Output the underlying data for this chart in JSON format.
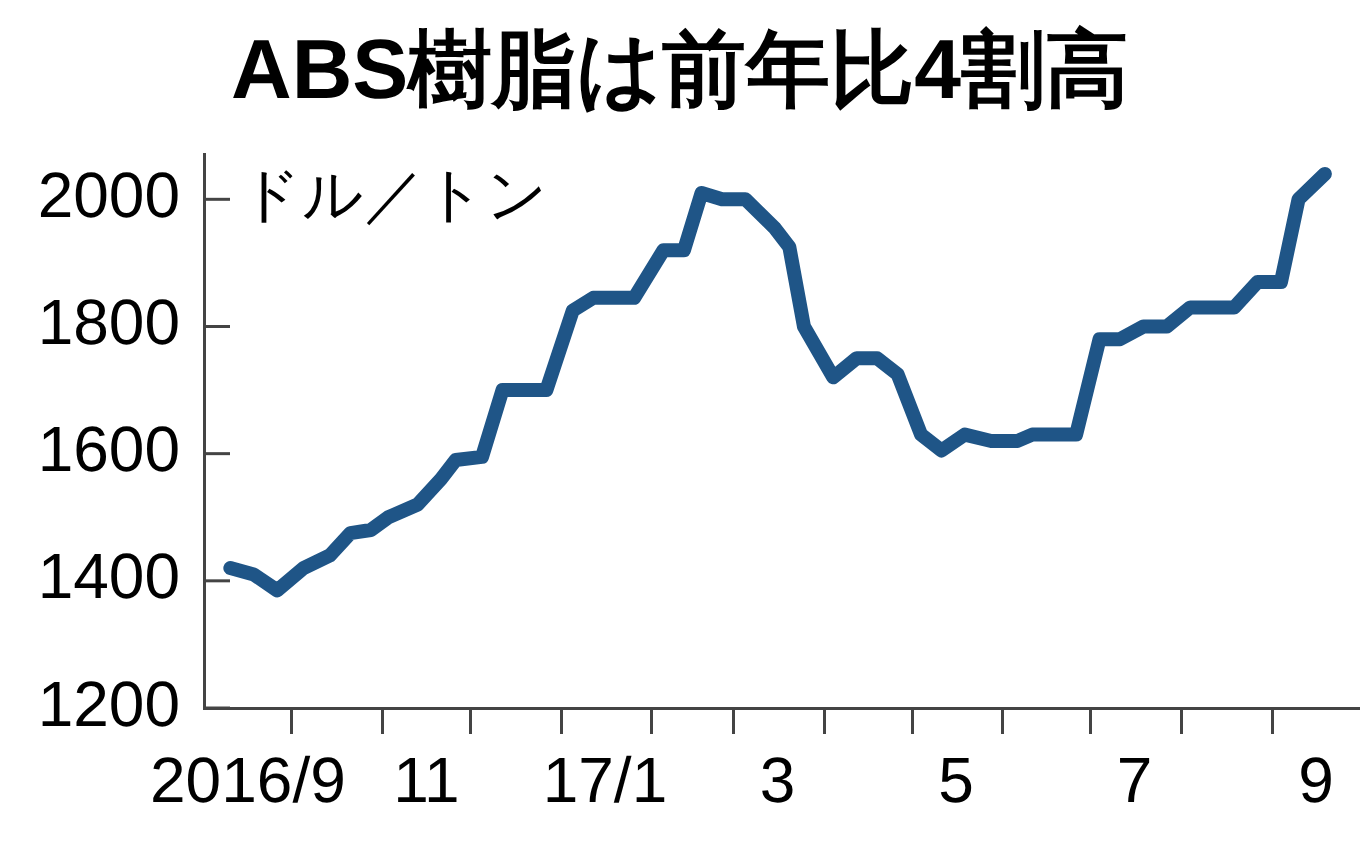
{
  "chart_data": {
    "type": "line",
    "title": "ABS樹脂は前年比4割高",
    "ylabel": "ドル／トン",
    "x": [
      "2016-09-10",
      "2016-09-18",
      "2016-09-26",
      "2016-10-05",
      "2016-10-14",
      "2016-10-21",
      "2016-10-28",
      "2016-11-03",
      "2016-11-13",
      "2016-11-21",
      "2016-11-26",
      "2016-12-05",
      "2016-12-12",
      "2016-12-27",
      "2017-01-05",
      "2017-01-12",
      "2017-01-26",
      "2017-02-05",
      "2017-02-12",
      "2017-02-18",
      "2017-02-25",
      "2017-03-05",
      "2017-03-15",
      "2017-03-20",
      "2017-03-25",
      "2017-04-04",
      "2017-04-12",
      "2017-04-19",
      "2017-04-26",
      "2017-05-04",
      "2017-05-11",
      "2017-05-19",
      "2017-05-28",
      "2017-06-06",
      "2017-06-11",
      "2017-06-26",
      "2017-07-04",
      "2017-07-11",
      "2017-07-19",
      "2017-07-27",
      "2017-08-04",
      "2017-08-19",
      "2017-08-27",
      "2017-09-04",
      "2017-09-10",
      "2017-09-19"
    ],
    "values": [
      1420,
      1410,
      1385,
      1420,
      1440,
      1475,
      1480,
      1500,
      1520,
      1560,
      1590,
      1595,
      1700,
      1700,
      1825,
      1845,
      1845,
      1920,
      1920,
      2010,
      2000,
      2000,
      1955,
      1925,
      1800,
      1720,
      1750,
      1750,
      1725,
      1630,
      1605,
      1630,
      1620,
      1620,
      1630,
      1630,
      1780,
      1780,
      1800,
      1800,
      1830,
      1830,
      1870,
      1870,
      2000,
      2040
    ],
    "color": "#1f5587",
    "xlim": [
      "2016-09-01",
      "2017-10-01"
    ],
    "ylim": [
      1200,
      2070
    ],
    "xticks": [
      {
        "value": "2016-09-16",
        "label": "2016/9"
      },
      {
        "value": "2016-10-01",
        "label": null
      },
      {
        "value": "2016-11-01",
        "label": null
      },
      {
        "value": "2016-11-16",
        "label": "11"
      },
      {
        "value": "2016-12-01",
        "label": null
      },
      {
        "value": "2017-01-01",
        "label": null
      },
      {
        "value": "2017-01-16",
        "label": "17/1"
      },
      {
        "value": "2017-02-01",
        "label": null
      },
      {
        "value": "2017-03-01",
        "label": null
      },
      {
        "value": "2017-03-16",
        "label": "3"
      },
      {
        "value": "2017-04-01",
        "label": null
      },
      {
        "value": "2017-05-01",
        "label": null
      },
      {
        "value": "2017-05-16",
        "label": "5"
      },
      {
        "value": "2017-06-01",
        "label": null
      },
      {
        "value": "2017-07-01",
        "label": null
      },
      {
        "value": "2017-07-16",
        "label": "7"
      },
      {
        "value": "2017-08-01",
        "label": null
      },
      {
        "value": "2017-09-01",
        "label": null
      },
      {
        "value": "2017-09-16",
        "label": "9"
      }
    ],
    "yticks": [
      1200,
      1400,
      1600,
      1800,
      2000
    ]
  }
}
